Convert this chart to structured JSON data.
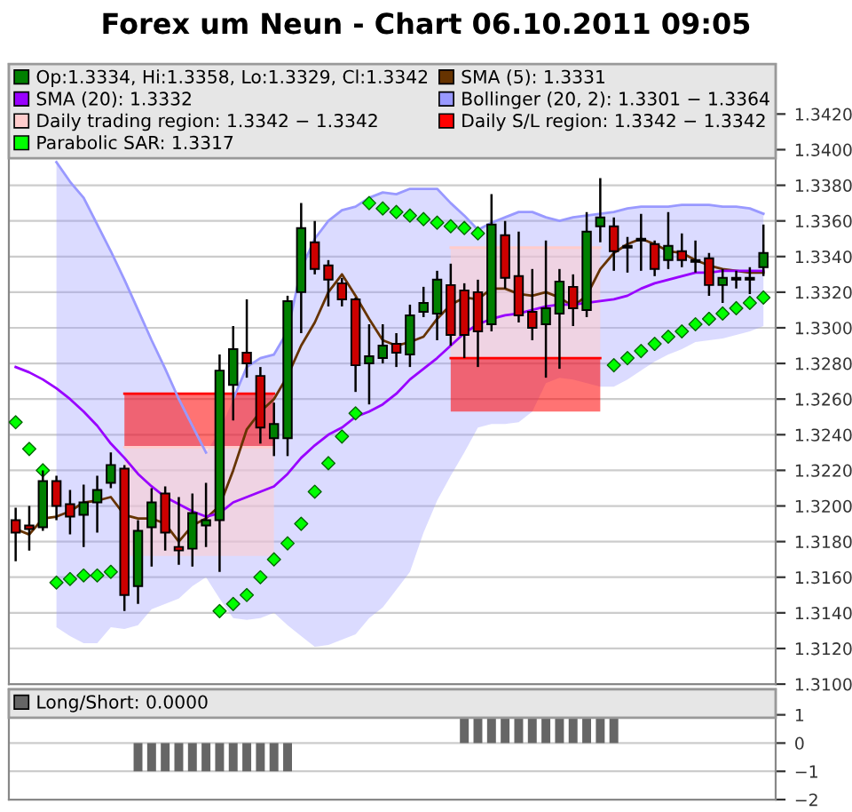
{
  "chart_data": [
    {
      "type": "candlestick",
      "title": "Forex um Neun - Chart 06.10.2011 09:05",
      "categories": [
        null,
        null,
        null,
        null,
        null,
        null,
        null,
        null,
        null,
        null,
        null,
        null,
        null,
        null,
        null,
        null,
        null,
        null,
        null,
        null,
        null,
        null,
        null,
        null,
        null,
        null,
        null,
        null,
        null,
        null,
        null,
        null,
        null,
        null,
        null,
        null,
        null,
        null,
        null,
        null,
        null,
        null,
        null,
        null,
        null,
        null,
        null,
        null,
        null,
        null,
        null,
        null,
        null,
        null,
        null,
        null
      ],
      "ylim": [
        1.31,
        1.3448
      ],
      "yticks": [
        {
          "value": 1.31,
          "label": "1.3100"
        },
        {
          "value": 1.312,
          "label": "1.3120"
        },
        {
          "value": 1.314,
          "label": "1.3140"
        },
        {
          "value": 1.316,
          "label": "1.3160"
        },
        {
          "value": 1.318,
          "label": "1.3180"
        },
        {
          "value": 1.32,
          "label": "1.3200"
        },
        {
          "value": 1.322,
          "label": "1.3220"
        },
        {
          "value": 1.324,
          "label": "1.3240"
        },
        {
          "value": 1.326,
          "label": "1.3260"
        },
        {
          "value": 1.328,
          "label": "1.3280"
        },
        {
          "value": 1.33,
          "label": "1.3300"
        },
        {
          "value": 1.332,
          "label": "1.3320"
        },
        {
          "value": 1.334,
          "label": "1.3340"
        },
        {
          "value": 1.336,
          "label": "1.3360"
        },
        {
          "value": 1.338,
          "label": "1.3380"
        },
        {
          "value": 1.34,
          "label": "1.3400"
        },
        {
          "value": 1.342,
          "label": "1.3420"
        }
      ],
      "grid": "y",
      "legend": "top",
      "tick_labels": "y",
      "series": [
        {
          "type": "candlestick",
          "name": "Op:1.3334, Hi:1.3358, Lo:1.3329, Cl:1.3342",
          "color": "#008000",
          "ohlc": [
            [
              1.3192,
              1.3199,
              1.3169,
              1.3185
            ],
            [
              1.3189,
              1.32,
              1.3175,
              1.3187
            ],
            [
              1.3188,
              1.322,
              1.3186,
              1.3214
            ],
            [
              1.3214,
              1.3217,
              1.3192,
              1.32
            ],
            [
              1.3201,
              1.3209,
              1.3184,
              1.3194
            ],
            [
              1.3195,
              1.3212,
              1.3177,
              1.3202
            ],
            [
              1.3202,
              1.3217,
              1.3185,
              1.3209
            ],
            [
              1.3213,
              1.323,
              1.321,
              1.3223
            ],
            [
              1.3221,
              1.3223,
              1.3141,
              1.315
            ],
            [
              1.3155,
              1.3192,
              1.3145,
              1.3186
            ],
            [
              1.3188,
              1.321,
              1.3166,
              1.3202
            ],
            [
              1.3207,
              1.3211,
              1.3175,
              1.3185
            ],
            [
              1.3177,
              1.3205,
              1.3167,
              1.3175
            ],
            [
              1.3176,
              1.3207,
              1.3166,
              1.3196
            ],
            [
              1.3189,
              1.3213,
              1.3177,
              1.3192
            ],
            [
              1.3192,
              1.3285,
              1.3163,
              1.3276
            ],
            [
              1.3268,
              1.3301,
              1.3248,
              1.3288
            ],
            [
              1.3286,
              1.3316,
              1.3272,
              1.328
            ],
            [
              1.3273,
              1.3278,
              1.3235,
              1.3244
            ],
            [
              1.3238,
              1.3258,
              1.3228,
              1.3246
            ],
            [
              1.3238,
              1.3318,
              1.3228,
              1.3315
            ],
            [
              1.332,
              1.337,
              1.3297,
              1.3356
            ],
            [
              1.3348,
              1.336,
              1.333,
              1.3333
            ],
            [
              1.3335,
              1.3338,
              1.3312,
              1.3327
            ],
            [
              1.3325,
              1.3328,
              1.3312,
              1.3316
            ],
            [
              1.3316,
              1.3317,
              1.3264,
              1.3279
            ],
            [
              1.328,
              1.3302,
              1.3257,
              1.3284
            ],
            [
              1.3283,
              1.3302,
              1.328,
              1.329
            ],
            [
              1.3291,
              1.3297,
              1.3278,
              1.3286
            ],
            [
              1.3285,
              1.3313,
              1.3278,
              1.3307
            ],
            [
              1.3309,
              1.3323,
              1.3306,
              1.3314
            ],
            [
              1.3308,
              1.3332,
              1.3293,
              1.3327
            ],
            [
              1.3324,
              1.3336,
              1.329,
              1.3296
            ],
            [
              1.3321,
              1.3325,
              1.3283,
              1.3296
            ],
            [
              1.332,
              1.3327,
              1.3278,
              1.3298
            ],
            [
              1.3302,
              1.3375,
              1.3298,
              1.3358
            ],
            [
              1.3352,
              1.336,
              1.3322,
              1.3328
            ],
            [
              1.3329,
              1.3354,
              1.3303,
              1.3307
            ],
            [
              1.3309,
              1.3333,
              1.3293,
              1.33
            ],
            [
              1.3302,
              1.3349,
              1.3272,
              1.3311
            ],
            [
              1.3308,
              1.3333,
              1.3277,
              1.3326
            ],
            [
              1.3323,
              1.333,
              1.3301,
              1.3311
            ],
            [
              1.331,
              1.3365,
              1.3306,
              1.3354
            ],
            [
              1.3357,
              1.3384,
              1.3348,
              1.3362
            ],
            [
              1.3357,
              1.3362,
              1.3332,
              1.3343
            ],
            [
              1.3346,
              1.3351,
              1.3331,
              1.3345
            ],
            [
              1.335,
              1.3364,
              1.3332,
              1.3349
            ],
            [
              1.3347,
              1.3349,
              1.3329,
              1.3333
            ],
            [
              1.3338,
              1.3365,
              1.3333,
              1.3346
            ],
            [
              1.3343,
              1.3353,
              1.3334,
              1.3338
            ],
            [
              1.3338,
              1.3349,
              1.3331,
              1.3337
            ],
            [
              1.3339,
              1.3342,
              1.3318,
              1.3324
            ],
            [
              1.3324,
              1.3333,
              1.3314,
              1.3328
            ],
            [
              1.3328,
              1.3332,
              1.3322,
              1.3327
            ],
            [
              1.3328,
              1.3334,
              1.3319,
              1.3327
            ],
            [
              1.3334,
              1.3358,
              1.3329,
              1.3342
            ]
          ],
          "colors": [
            "#cc0000",
            "#cc0000",
            "#008000",
            "#cc0000",
            "#cc0000",
            "#008000",
            "#008000",
            "#008000",
            "#cc0000",
            "#008000",
            "#008000",
            "#cc0000",
            "#cc0000",
            "#008000",
            "#008000",
            "#008000",
            "#008000",
            "#cc0000",
            "#cc0000",
            "#008000",
            "#008000",
            "#008000",
            "#cc0000",
            "#cc0000",
            "#cc0000",
            "#cc0000",
            "#008000",
            "#008000",
            "#cc0000",
            "#008000",
            "#008000",
            "#008000",
            "#cc0000",
            "#cc0000",
            "#cc0000",
            "#008000",
            "#cc0000",
            "#cc0000",
            "#cc0000",
            "#008000",
            "#008000",
            "#cc0000",
            "#008000",
            "#008000",
            "#cc0000",
            "#cc0000",
            "#cc0000",
            "#cc0000",
            "#008000",
            "#cc0000",
            "#cc0000",
            "#cc0000",
            "#008000",
            "#cc0000",
            "#cc0000",
            "#008000"
          ]
        },
        {
          "type": "line",
          "name": "SMA (5): 1.3331",
          "color": "#663300",
          "marker": "none",
          "line_style": "solid",
          "values": [
            1.3187,
            1.3184,
            1.3193,
            1.3194,
            1.3197,
            1.3202,
            1.3203,
            1.3205,
            1.3195,
            1.3193,
            1.3193,
            1.319,
            1.318,
            1.3189,
            1.3193,
            1.32,
            1.322,
            1.3243,
            1.3253,
            1.326,
            1.3273,
            1.329,
            1.3303,
            1.332,
            1.333,
            1.3318,
            1.3305,
            1.3293,
            1.329,
            1.3292,
            1.3295,
            1.3305,
            1.3313,
            1.3317,
            1.3316,
            1.3322,
            1.3322,
            1.3319,
            1.3318,
            1.332,
            1.3317,
            1.3312,
            1.3318,
            1.3333,
            1.3342,
            1.3347,
            1.335,
            1.3347,
            1.3343,
            1.3342,
            1.3338,
            1.3335,
            1.3333,
            1.3332,
            1.3331,
            1.3331
          ]
        },
        {
          "type": "line",
          "name": "SMA (20): 1.3332",
          "color": "#9900ff",
          "marker": "none",
          "line_style": "solid",
          "values": [
            1.3278,
            1.3275,
            1.3271,
            1.3266,
            1.326,
            1.3253,
            1.3245,
            1.3235,
            1.3227,
            1.3218,
            1.3211,
            1.3205,
            1.3201,
            1.3197,
            1.3194,
            1.3196,
            1.3202,
            1.3205,
            1.3208,
            1.3211,
            1.3218,
            1.3227,
            1.3234,
            1.324,
            1.3244,
            1.325,
            1.3253,
            1.3257,
            1.3263,
            1.3271,
            1.3277,
            1.3283,
            1.329,
            1.3297,
            1.3302,
            1.3305,
            1.3307,
            1.3308,
            1.331,
            1.3312,
            1.3313,
            1.3313,
            1.3314,
            1.3315,
            1.3316,
            1.3318,
            1.3322,
            1.3325,
            1.3327,
            1.3329,
            1.3331,
            1.3331,
            1.3332,
            1.3332,
            1.3332,
            1.3332
          ]
        },
        {
          "type": "line",
          "name": "Bollinger (20, 2): 1.3301 − 1.3364",
          "color": "#9999ff",
          "marker": "none",
          "line_style": "solid",
          "values": [
            null,
            null,
            null,
            1.3393,
            1.3382,
            1.3373,
            1.3358,
            1.3343,
            1.3327,
            1.331,
            1.3293,
            1.3277,
            1.326,
            1.3245,
            1.323,
            null,
            1.326,
            1.3278,
            1.3283,
            1.3285,
            1.3298,
            1.3333,
            1.335,
            1.336,
            1.3366,
            1.3368,
            1.3373,
            1.3376,
            1.3375,
            1.3378,
            1.3378,
            1.3378,
            1.337,
            1.3363,
            1.3355,
            1.3359,
            1.3362,
            1.3365,
            1.3365,
            1.3362,
            1.336,
            1.3362,
            1.3363,
            1.3364,
            1.3365,
            1.3367,
            1.3368,
            1.3368,
            1.3368,
            1.3369,
            1.3369,
            1.3369,
            1.3368,
            1.3368,
            1.3367,
            1.3364
          ],
          "upper": [
            null,
            null,
            null,
            1.3393,
            1.3382,
            1.3373,
            1.3358,
            1.3343,
            1.3327,
            1.331,
            1.3293,
            1.3277,
            1.326,
            1.3245,
            1.323,
            1.3242,
            1.326,
            1.3278,
            1.3283,
            1.3285,
            1.3298,
            1.3333,
            1.335,
            1.336,
            1.3366,
            1.3368,
            1.3373,
            1.3376,
            1.3375,
            1.3378,
            1.3378,
            1.3378,
            1.337,
            1.3363,
            1.3355,
            1.3359,
            1.3362,
            1.3365,
            1.3365,
            1.3362,
            1.336,
            1.3362,
            1.3363,
            1.3364,
            1.3365,
            1.3367,
            1.3368,
            1.3368,
            1.3368,
            1.3369,
            1.3369,
            1.3369,
            1.3368,
            1.3368,
            1.3367,
            1.3364
          ],
          "lower": [
            null,
            null,
            null,
            1.3132,
            1.3127,
            1.3123,
            1.3123,
            1.3132,
            1.3131,
            1.3133,
            1.3142,
            1.3145,
            1.3148,
            1.3155,
            1.316,
            1.3148,
            1.3137,
            1.3136,
            1.3137,
            1.314,
            1.3133,
            1.3127,
            1.3121,
            1.3122,
            1.3125,
            1.3128,
            1.3137,
            1.3143,
            1.3153,
            1.3163,
            1.3185,
            1.3203,
            1.3217,
            1.323,
            1.3244,
            1.3246,
            1.3246,
            1.3247,
            1.3253,
            1.3269,
            1.3272,
            1.3271,
            1.3269,
            1.3267,
            1.3267,
            1.3271,
            1.3276,
            1.3281,
            1.3285,
            1.3288,
            1.3292,
            1.3293,
            1.3294,
            1.3296,
            1.3298,
            1.3301
          ]
        },
        {
          "type": "line",
          "name": "Daily trading region: 1.3342 − 1.3342",
          "color": "#ffcccc",
          "marker": "none",
          "line_style": "solid",
          "values": [
            null,
            null,
            null,
            null,
            null,
            null,
            null,
            null,
            1.3233,
            1.3233,
            1.3233,
            1.3233,
            1.3233,
            1.3233,
            1.3233,
            1.3233,
            1.3233,
            1.3233,
            1.3233,
            1.3233,
            null,
            null,
            null,
            null,
            null,
            null,
            null,
            null,
            null,
            null,
            null,
            null,
            1.3345,
            1.3345,
            1.3345,
            1.3345,
            1.3345,
            1.3345,
            1.3345,
            1.3345,
            1.3345,
            1.3345,
            1.3345,
            1.3345,
            null,
            null,
            null,
            null,
            null,
            null,
            null,
            null,
            null,
            null,
            null,
            null
          ],
          "upper": [
            null,
            null,
            null,
            null,
            null,
            null,
            null,
            null,
            1.3233,
            1.3233,
            1.3233,
            1.3233,
            1.3233,
            1.3233,
            1.3233,
            1.3233,
            1.3233,
            1.3233,
            1.3233,
            1.3233,
            null,
            null,
            null,
            null,
            null,
            null,
            null,
            null,
            null,
            null,
            null,
            null,
            1.3345,
            1.3345,
            1.3345,
            1.3345,
            1.3345,
            1.3345,
            1.3345,
            1.3345,
            1.3345,
            1.3345,
            1.3345,
            1.3345,
            null,
            null,
            null,
            null,
            null,
            null,
            null,
            null,
            null,
            null,
            null,
            null
          ],
          "lower": [
            null,
            null,
            null,
            null,
            null,
            null,
            null,
            null,
            1.3172,
            1.3172,
            1.3172,
            1.3172,
            1.3172,
            1.3172,
            1.3172,
            1.3172,
            1.3172,
            1.3172,
            1.3172,
            1.3172,
            null,
            null,
            null,
            null,
            null,
            null,
            null,
            null,
            null,
            null,
            null,
            null,
            1.3283,
            1.3283,
            1.3283,
            1.3283,
            1.3283,
            1.3283,
            1.3283,
            1.3283,
            1.3283,
            1.3283,
            1.3283,
            1.3283,
            null,
            null,
            null,
            null,
            null,
            null,
            null,
            null,
            null,
            null,
            null,
            null
          ]
        },
        {
          "type": "line",
          "name": "Daily S/L region: 1.3342 − 1.3342",
          "color": "#ff0000",
          "marker": "none",
          "line_style": "solid",
          "values": [
            null,
            null,
            null,
            null,
            null,
            null,
            null,
            null,
            1.3263,
            1.3263,
            1.3263,
            1.3263,
            1.3263,
            1.3263,
            1.3263,
            1.3263,
            1.3263,
            1.3263,
            1.3263,
            1.3263,
            null,
            null,
            null,
            null,
            null,
            null,
            null,
            null,
            null,
            null,
            null,
            null,
            1.3283,
            1.3283,
            1.3283,
            1.3283,
            1.3283,
            1.3283,
            1.3283,
            1.3283,
            1.3283,
            1.3283,
            1.3283,
            1.3283,
            null,
            null,
            null,
            null,
            null,
            null,
            null,
            null,
            null,
            null,
            null,
            null
          ],
          "upper": [
            null,
            null,
            null,
            null,
            null,
            null,
            null,
            null,
            1.3263,
            1.3263,
            1.3263,
            1.3263,
            1.3263,
            1.3263,
            1.3263,
            1.3263,
            1.3263,
            1.3263,
            1.3263,
            1.3263,
            null,
            null,
            null,
            null,
            null,
            null,
            null,
            null,
            null,
            null,
            null,
            null,
            1.3283,
            1.3283,
            1.3283,
            1.3283,
            1.3283,
            1.3283,
            1.3283,
            1.3283,
            1.3283,
            1.3283,
            1.3283,
            1.3283,
            null,
            null,
            null,
            null,
            null,
            null,
            null,
            null,
            null,
            null,
            null,
            null
          ],
          "lower": [
            null,
            null,
            null,
            null,
            null,
            null,
            null,
            null,
            1.3233,
            1.3233,
            1.3233,
            1.3233,
            1.3233,
            1.3233,
            1.3233,
            1.3233,
            1.3233,
            1.3233,
            1.3233,
            1.3233,
            null,
            null,
            null,
            null,
            null,
            null,
            null,
            null,
            null,
            null,
            null,
            null,
            1.3253,
            1.3253,
            1.3253,
            1.3253,
            1.3253,
            1.3253,
            1.3253,
            1.3253,
            1.3253,
            1.3253,
            1.3253,
            1.3253,
            null,
            null,
            null,
            null,
            null,
            null,
            null,
            null,
            null,
            null,
            null,
            null
          ]
        },
        {
          "type": "scatter",
          "name": "Parabolic SAR: 1.3317",
          "color": "#00ff00",
          "marker": "diamond",
          "values": [
            1.3247,
            1.3232,
            1.322,
            1.3157,
            1.3159,
            1.3161,
            1.3161,
            1.3163,
            null,
            null,
            null,
            null,
            null,
            null,
            null,
            1.3141,
            1.3145,
            1.315,
            1.316,
            1.317,
            1.3179,
            1.319,
            1.3208,
            1.3224,
            1.3239,
            1.3252,
            1.337,
            1.3367,
            1.3365,
            1.3363,
            1.3361,
            1.3359,
            1.3357,
            1.3356,
            1.3353,
            null,
            null,
            null,
            null,
            null,
            null,
            null,
            null,
            null,
            1.3279,
            1.3283,
            1.3287,
            1.3291,
            1.3295,
            1.3298,
            1.3302,
            1.3305,
            1.3308,
            1.3311,
            1.3314,
            1.3317
          ]
        }
      ]
    },
    {
      "type": "bar",
      "categories": [
        null,
        null,
        null,
        null,
        null,
        null,
        null,
        null,
        null,
        null,
        null,
        null,
        null,
        null,
        null,
        null,
        null,
        null,
        null,
        null,
        null,
        null,
        null,
        null,
        null,
        null,
        null,
        null,
        null,
        null,
        null,
        null,
        null,
        null,
        null,
        null,
        null,
        null,
        null,
        null,
        null,
        null,
        null,
        null,
        null,
        null,
        null,
        null,
        null,
        null,
        null,
        null,
        null,
        null,
        null,
        null
      ],
      "ylim": [
        -2,
        1.9
      ],
      "yticks": [
        1,
        0,
        {
          "value": -1,
          "label": "−1"
        },
        {
          "value": -2,
          "label": "−2"
        }
      ],
      "grid": "y",
      "legend": "top",
      "tick_labels": "y",
      "series": [
        {
          "name": "Long/Short: 0.0000",
          "color": "#666666",
          "values": [
            0,
            0,
            0,
            0,
            0,
            0,
            0,
            0,
            0,
            -1,
            -1,
            -1,
            -1,
            -1,
            -1,
            -1,
            -1,
            -1,
            -1,
            -1,
            -1,
            0,
            0,
            0,
            0,
            0,
            0,
            0,
            0,
            0,
            0,
            0,
            0,
            1,
            1,
            1,
            1,
            1,
            1,
            1,
            1,
            1,
            1,
            1,
            1,
            0,
            0,
            0,
            0,
            0,
            0,
            0,
            0,
            0,
            0,
            0
          ]
        }
      ]
    }
  ]
}
